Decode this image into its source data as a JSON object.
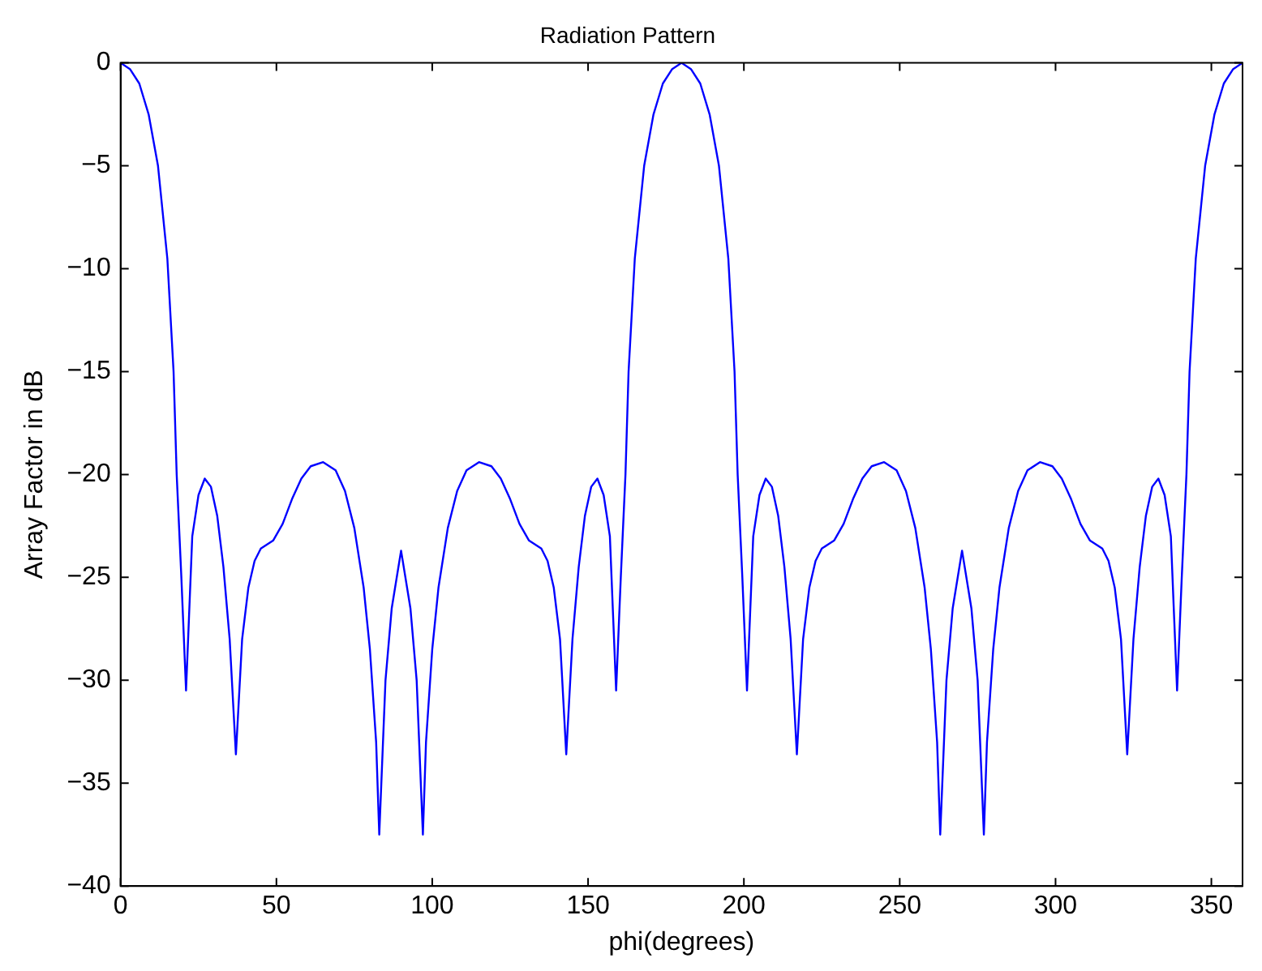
{
  "chart_data": {
    "type": "line",
    "title": "Radiation Pattern",
    "xlabel": "phi(degrees)",
    "ylabel": "Array Factor in dB",
    "x": [
      0,
      3,
      6,
      9,
      12,
      15,
      17,
      18,
      19.5,
      21,
      23,
      25,
      27,
      29,
      31,
      33,
      35,
      37,
      39,
      41,
      43,
      45,
      47,
      49,
      52,
      55,
      58,
      61,
      65,
      69,
      72,
      75,
      78,
      80,
      82,
      83,
      85,
      87,
      90,
      93,
      95,
      97,
      98,
      100,
      102,
      105,
      108,
      111,
      115,
      119,
      122,
      125,
      128,
      131,
      133,
      135,
      137,
      139,
      141,
      143,
      145,
      147,
      149,
      151,
      153,
      155,
      157,
      159,
      160.5,
      162,
      163,
      165,
      168,
      171,
      174,
      177,
      180,
      183,
      186,
      189,
      192,
      195,
      197,
      198,
      199.5,
      201,
      203,
      205,
      207,
      209,
      211,
      213,
      215,
      217,
      219,
      221,
      223,
      225,
      227,
      229,
      232,
      235,
      238,
      241,
      245,
      249,
      252,
      255,
      258,
      260,
      262,
      263,
      265,
      267,
      270,
      273,
      275,
      277,
      278,
      280,
      282,
      285,
      288,
      291,
      295,
      299,
      302,
      305,
      308,
      311,
      313,
      315,
      317,
      319,
      321,
      323,
      325,
      327,
      329,
      331,
      333,
      335,
      337,
      339,
      340.5,
      342,
      343,
      345,
      348,
      351,
      354,
      357,
      360
    ],
    "series": [
      {
        "color": "#0000ff",
        "values": [
          0,
          -0.3,
          -1,
          -2.5,
          -5,
          -9.5,
          -15,
          -20,
          -25,
          -30.5,
          -23,
          -21,
          -20.2,
          -20.6,
          -22,
          -24.5,
          -28,
          -33.6,
          -28,
          -25.5,
          -24.2,
          -23.6,
          -23.4,
          -23.2,
          -22.4,
          -21.2,
          -20.2,
          -19.6,
          -19.4,
          -19.8,
          -20.8,
          -22.6,
          -25.5,
          -28.5,
          -33,
          -37.5,
          -30,
          -26.5,
          -23.7,
          -26.5,
          -30,
          -37.5,
          -33,
          -28.5,
          -25.5,
          -22.6,
          -20.8,
          -19.8,
          -19.4,
          -19.6,
          -20.2,
          -21.2,
          -22.4,
          -23.2,
          -23.4,
          -23.6,
          -24.2,
          -25.5,
          -28,
          -33.6,
          -28,
          -24.5,
          -22,
          -20.6,
          -20.2,
          -21,
          -23,
          -30.5,
          -25,
          -20,
          -15,
          -9.5,
          -5,
          -2.5,
          -1,
          -0.3,
          0,
          -0.3,
          -1,
          -2.5,
          -5,
          -9.5,
          -15,
          -20,
          -25,
          -30.5,
          -23,
          -21,
          -20.2,
          -20.6,
          -22,
          -24.5,
          -28,
          -33.6,
          -28,
          -25.5,
          -24.2,
          -23.6,
          -23.4,
          -23.2,
          -22.4,
          -21.2,
          -20.2,
          -19.6,
          -19.4,
          -19.8,
          -20.8,
          -22.6,
          -25.5,
          -28.5,
          -33,
          -37.5,
          -30,
          -26.5,
          -23.7,
          -26.5,
          -30,
          -37.5,
          -33,
          -28.5,
          -25.5,
          -22.6,
          -20.8,
          -19.8,
          -19.4,
          -19.6,
          -20.2,
          -21.2,
          -22.4,
          -23.2,
          -23.4,
          -23.6,
          -24.2,
          -25.5,
          -28,
          -33.6,
          -28,
          -24.5,
          -22,
          -20.6,
          -20.2,
          -21,
          -23,
          -30.5,
          -25,
          -20,
          -15,
          -9.5,
          -5,
          -2.5,
          -1,
          -0.3,
          0
        ]
      }
    ],
    "xlim": [
      0,
      360
    ],
    "xticks": [
      0,
      50,
      100,
      150,
      200,
      250,
      300,
      350
    ],
    "ylim": [
      -40,
      0
    ],
    "yticks": [
      -40,
      -35,
      -30,
      -25,
      -20,
      -15,
      -10,
      -5,
      0
    ],
    "grid": false,
    "legend": false,
    "marker": "none",
    "line_style": "solid"
  }
}
